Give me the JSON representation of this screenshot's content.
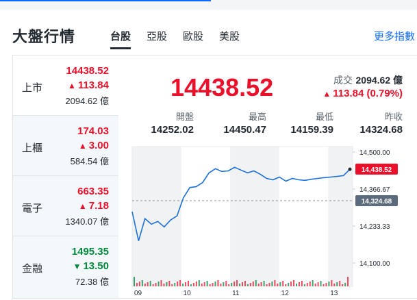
{
  "header": {
    "title": "大盤行情",
    "tabs": [
      {
        "label": "台股",
        "active": true
      },
      {
        "label": "亞股",
        "active": false
      },
      {
        "label": "歐股",
        "active": false
      },
      {
        "label": "美股",
        "active": false
      }
    ],
    "more_link": "更多指數"
  },
  "sidebar": {
    "items": [
      {
        "name": "上市",
        "price": "14438.52",
        "change": "113.84",
        "direction": "up",
        "volume": "2094.62 億"
      },
      {
        "name": "上櫃",
        "price": "174.03",
        "change": "3.00",
        "direction": "up",
        "volume": "584.54 億"
      },
      {
        "name": "電子",
        "price": "663.35",
        "change": "7.18",
        "direction": "up",
        "volume": "1340.07 億"
      },
      {
        "name": "金融",
        "price": "1495.35",
        "change": "13.50",
        "direction": "down",
        "volume": "72.38 億"
      }
    ]
  },
  "main": {
    "price": "14438.52",
    "volume_label": "成交",
    "volume_value": "2094.62 億",
    "change": "113.84 (0.79%)",
    "stats": [
      {
        "label": "開盤",
        "value": "14252.02"
      },
      {
        "label": "最高",
        "value": "14450.47"
      },
      {
        "label": "最低",
        "value": "14159.39"
      },
      {
        "label": "昨收",
        "value": "14324.68"
      }
    ]
  },
  "colors": {
    "up": "#eb0f29",
    "down": "#00873c",
    "line": "#1a6fd8",
    "accent": "#0f69ff",
    "prev_close_tag": "#5b6b7d"
  },
  "chart_data": {
    "type": "line",
    "x_ticks": [
      "09",
      "10",
      "11",
      "12",
      "13"
    ],
    "y_ticks": [
      "14,500.00",
      "14,366.67",
      "14,233.33",
      "14,100.00"
    ],
    "ylim": [
      14100,
      14500
    ],
    "current_tag": "14,438.52",
    "prev_close_tag": "14,324.68",
    "prev_close": 14324.68,
    "current": 14438.52,
    "series": [
      {
        "values": [
          14285,
          14180,
          14260,
          14240,
          14250,
          14230,
          14255,
          14270,
          14335,
          14372,
          14375,
          14390,
          14425,
          14440,
          14430,
          14432,
          14445,
          14435,
          14425,
          14432,
          14420,
          14405,
          14400,
          14410,
          14395,
          14405,
          14400,
          14398,
          14402,
          14405,
          14408,
          14410,
          14412,
          14415,
          14438
        ]
      }
    ]
  }
}
